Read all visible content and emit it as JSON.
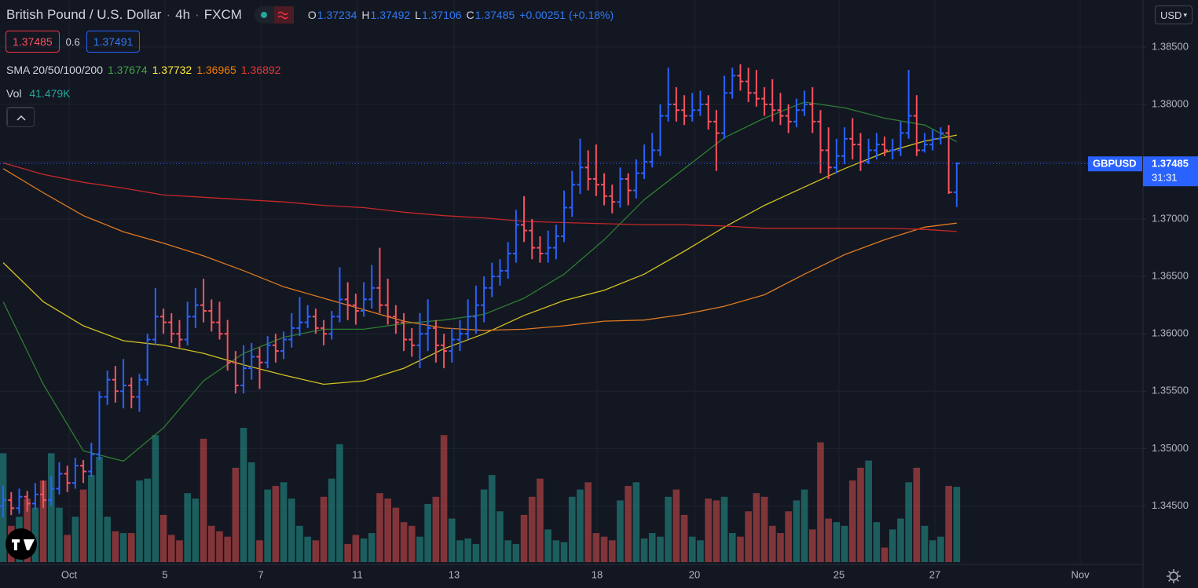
{
  "header": {
    "symbol": "British Pound / U.S. Dollar",
    "interval": "4h",
    "exchange": "FXCM",
    "ohlc_letters": [
      "O",
      "H",
      "L",
      "C"
    ],
    "change": "+0.00251 (+0.18%)",
    "sell": "1.37485",
    "spread": "0.6",
    "buy": "1.37491",
    "currency": "USD"
  },
  "chart_data": {
    "type": "ohlc",
    "open": [
      1.345,
      1.3455,
      1.3448,
      1.3458,
      1.3452,
      1.346,
      1.3455,
      1.3465,
      1.3478,
      1.347,
      1.3485,
      1.348,
      1.3495,
      1.3545,
      1.356,
      1.355,
      1.3555,
      1.3545,
      1.356,
      1.3595,
      1.3615,
      1.361,
      1.36,
      1.3595,
      1.3615,
      1.3625,
      1.362,
      1.361,
      1.36,
      1.3575,
      1.3555,
      1.357,
      1.358,
      1.3575,
      1.359,
      1.3585,
      1.3595,
      1.3605,
      1.361,
      1.3615,
      1.3605,
      1.36,
      1.3615,
      1.363,
      1.3625,
      1.362,
      1.363,
      1.364,
      1.3625,
      1.3615,
      1.361,
      1.3595,
      1.359,
      1.36,
      1.3605,
      1.359,
      1.3585,
      1.3595,
      1.36,
      1.3615,
      1.3625,
      1.364,
      1.365,
      1.3655,
      1.367,
      1.3695,
      1.369,
      1.3675,
      1.367,
      1.3675,
      1.3685,
      1.371,
      1.373,
      1.3745,
      1.3735,
      1.373,
      1.372,
      1.3715,
      1.3735,
      1.3725,
      1.374,
      1.375,
      1.376,
      1.379,
      1.38,
      1.3795,
      1.379,
      1.3795,
      1.38,
      1.3785,
      1.3775,
      1.381,
      1.3825,
      1.382,
      1.381,
      1.3805,
      1.38,
      1.3795,
      1.379,
      1.3785,
      1.3795,
      1.38,
      1.3785,
      1.376,
      1.3745,
      1.3755,
      1.377,
      1.3765,
      1.375,
      1.376,
      1.3765,
      1.376,
      1.376,
      1.3775,
      1.379,
      1.376,
      1.3765,
      1.377,
      1.3775,
      1.37234
    ],
    "high": [
      1.3468,
      1.3462,
      1.3465,
      1.3463,
      1.347,
      1.3472,
      1.3476,
      1.3488,
      1.3485,
      1.3492,
      1.349,
      1.3505,
      1.355,
      1.3568,
      1.3572,
      1.3578,
      1.3562,
      1.3565,
      1.36,
      1.364,
      1.3622,
      1.3618,
      1.3612,
      1.3628,
      1.364,
      1.3648,
      1.363,
      1.3628,
      1.3612,
      1.3585,
      1.359,
      1.3592,
      1.3588,
      1.3598,
      1.36,
      1.3602,
      1.3618,
      1.3632,
      1.3625,
      1.3622,
      1.3612,
      1.362,
      1.3658,
      1.3645,
      1.3635,
      1.3645,
      1.366,
      1.3675,
      1.3648,
      1.3625,
      1.3618,
      1.3605,
      1.3618,
      1.363,
      1.3612,
      1.36,
      1.3605,
      1.3612,
      1.363,
      1.3642,
      1.365,
      1.3662,
      1.3665,
      1.368,
      1.3708,
      1.372,
      1.37,
      1.3685,
      1.369,
      1.3695,
      1.3725,
      1.3742,
      1.377,
      1.376,
      1.3765,
      1.374,
      1.373,
      1.3745,
      1.374,
      1.3752,
      1.3765,
      1.3775,
      1.38,
      1.3832,
      1.3815,
      1.3808,
      1.381,
      1.3812,
      1.3808,
      1.3795,
      1.3825,
      1.3832,
      1.3835,
      1.3832,
      1.383,
      1.3815,
      1.3822,
      1.381,
      1.38,
      1.3805,
      1.3812,
      1.3815,
      1.3795,
      1.378,
      1.377,
      1.378,
      1.3788,
      1.3775,
      1.377,
      1.3775,
      1.3772,
      1.377,
      1.3785,
      1.383,
      1.3808,
      1.3775,
      1.3778,
      1.378,
      1.3782,
      1.37492
    ],
    "low": [
      1.344,
      1.3442,
      1.3443,
      1.3445,
      1.3447,
      1.3448,
      1.345,
      1.346,
      1.3462,
      1.3465,
      1.347,
      1.3475,
      1.349,
      1.3538,
      1.354,
      1.3535,
      1.3535,
      1.3532,
      1.3555,
      1.359,
      1.36,
      1.3592,
      1.3588,
      1.359,
      1.3605,
      1.361,
      1.3602,
      1.3595,
      1.3568,
      1.3548,
      1.3548,
      1.356,
      1.3552,
      1.357,
      1.3575,
      1.3578,
      1.3588,
      1.3598,
      1.3605,
      1.36,
      1.359,
      1.3595,
      1.361,
      1.3612,
      1.3608,
      1.3615,
      1.3622,
      1.3618,
      1.3608,
      1.36,
      1.3585,
      1.358,
      1.357,
      1.3585,
      1.3575,
      1.357,
      1.3575,
      1.3585,
      1.3595,
      1.36,
      1.361,
      1.3632,
      1.3642,
      1.3648,
      1.3662,
      1.368,
      1.3665,
      1.3662,
      1.3662,
      1.3665,
      1.368,
      1.3702,
      1.3722,
      1.3725,
      1.372,
      1.3712,
      1.3705,
      1.371,
      1.3712,
      1.3718,
      1.3735,
      1.3745,
      1.3755,
      1.3785,
      1.3785,
      1.3782,
      1.3785,
      1.379,
      1.3778,
      1.3742,
      1.377,
      1.3805,
      1.3812,
      1.3802,
      1.3798,
      1.379,
      1.3785,
      1.3782,
      1.3775,
      1.378,
      1.379,
      1.3775,
      1.374,
      1.3735,
      1.374,
      1.3748,
      1.3752,
      1.3742,
      1.3748,
      1.3752,
      1.3755,
      1.3752,
      1.3755,
      1.377,
      1.3755,
      1.3758,
      1.376,
      1.3765,
      1.3722,
      1.37106
    ],
    "close": [
      1.3455,
      1.3448,
      1.3458,
      1.3452,
      1.346,
      1.3455,
      1.3465,
      1.3478,
      1.347,
      1.3485,
      1.348,
      1.3495,
      1.3545,
      1.356,
      1.355,
      1.3555,
      1.3545,
      1.356,
      1.3595,
      1.3615,
      1.361,
      1.36,
      1.3595,
      1.3615,
      1.3625,
      1.362,
      1.361,
      1.36,
      1.3575,
      1.3555,
      1.357,
      1.358,
      1.3575,
      1.359,
      1.3585,
      1.3595,
      1.3605,
      1.361,
      1.3615,
      1.3605,
      1.36,
      1.3615,
      1.363,
      1.3625,
      1.362,
      1.363,
      1.364,
      1.3625,
      1.3615,
      1.361,
      1.3595,
      1.359,
      1.36,
      1.3605,
      1.359,
      1.3585,
      1.3595,
      1.36,
      1.3615,
      1.3625,
      1.364,
      1.365,
      1.3655,
      1.367,
      1.3695,
      1.369,
      1.3675,
      1.367,
      1.3675,
      1.3685,
      1.371,
      1.373,
      1.3745,
      1.3735,
      1.373,
      1.372,
      1.3715,
      1.3735,
      1.3725,
      1.374,
      1.375,
      1.376,
      1.379,
      1.38,
      1.3795,
      1.379,
      1.3795,
      1.38,
      1.3785,
      1.3775,
      1.381,
      1.3825,
      1.382,
      1.381,
      1.3805,
      1.38,
      1.3795,
      1.379,
      1.3785,
      1.3795,
      1.38,
      1.3785,
      1.376,
      1.3745,
      1.3755,
      1.377,
      1.3765,
      1.375,
      1.376,
      1.3765,
      1.376,
      1.376,
      1.3775,
      1.379,
      1.376,
      1.3765,
      1.377,
      1.3775,
      1.37234,
      1.37485
    ],
    "volume": [
      60,
      20,
      25,
      35,
      30,
      45,
      60,
      30,
      15,
      25,
      40,
      48,
      58,
      25,
      17,
      16,
      16,
      45,
      46,
      70,
      26,
      15,
      12,
      38,
      35,
      68,
      20,
      17,
      14,
      52,
      74,
      55,
      12,
      40,
      42,
      44,
      35,
      20,
      14,
      12,
      36,
      46,
      65,
      10,
      15,
      13,
      16,
      38,
      35,
      30,
      22,
      20,
      14,
      32,
      36,
      70,
      24,
      12,
      13,
      10,
      40,
      48,
      28,
      12,
      10,
      26,
      36,
      46,
      18,
      12,
      11,
      36,
      40,
      44,
      16,
      14,
      12,
      34,
      42,
      44,
      13,
      16,
      14,
      36,
      40,
      26,
      14,
      12,
      35,
      34,
      36,
      16,
      14,
      28,
      38,
      36,
      20,
      16,
      28,
      34,
      40,
      18,
      66,
      24,
      22,
      20,
      45,
      52,
      56,
      22,
      8,
      18,
      24,
      44,
      52,
      20,
      12,
      14,
      42,
      41.479
    ],
    "volume_legend": {
      "name": "Vol",
      "label": "41.479K"
    },
    "sma_name": "SMA 20/50/100/200",
    "sma_x": [
      0,
      5,
      10,
      15,
      20,
      25,
      30,
      35,
      40,
      45,
      50,
      55,
      60,
      65,
      70,
      75,
      80,
      85,
      90,
      95,
      100,
      105,
      110,
      115,
      119
    ],
    "sma": [
      {
        "color": "#2e7d32",
        "legend_color": "#43a047",
        "values": [
          1.3628,
          1.3556,
          1.3498,
          1.3489,
          1.3518,
          1.3559,
          1.3583,
          1.3597,
          1.3604,
          1.3604,
          1.3609,
          1.3612,
          1.3617,
          1.3631,
          1.3652,
          1.3682,
          1.3717,
          1.3744,
          1.3771,
          1.3788,
          1.3802,
          1.3797,
          1.3788,
          1.3782,
          1.37674
        ]
      },
      {
        "color": "#d4c21f",
        "legend_color": "#ffeb3b",
        "values": [
          1.3662,
          1.3628,
          1.3607,
          1.3594,
          1.359,
          1.3583,
          1.3573,
          1.3564,
          1.3556,
          1.3559,
          1.357,
          1.3587,
          1.36,
          1.3616,
          1.3629,
          1.3638,
          1.3652,
          1.3672,
          1.3693,
          1.3712,
          1.3728,
          1.3744,
          1.3758,
          1.3768,
          1.37732
        ]
      },
      {
        "color": "#e07a1f",
        "legend_color": "#f57c00",
        "values": [
          1.3744,
          1.3723,
          1.3703,
          1.3689,
          1.3679,
          1.3668,
          1.3655,
          1.3641,
          1.3631,
          1.3621,
          1.3611,
          1.3605,
          1.3603,
          1.3604,
          1.3607,
          1.3611,
          1.3612,
          1.3617,
          1.3624,
          1.3634,
          1.3652,
          1.3669,
          1.3682,
          1.3693,
          1.36965
        ]
      },
      {
        "color": "#c62828",
        "legend_color": "#e53935",
        "values": [
          1.3749,
          1.3739,
          1.3732,
          1.3727,
          1.3721,
          1.3719,
          1.3717,
          1.3715,
          1.3712,
          1.371,
          1.3706,
          1.3703,
          1.3701,
          1.3698,
          1.3697,
          1.3696,
          1.3695,
          1.3695,
          1.3694,
          1.3692,
          1.3692,
          1.3692,
          1.3692,
          1.3691,
          1.36892
        ]
      }
    ],
    "ylim": [
      1.3401,
      1.3891
    ],
    "yticks": [
      {
        "value": 1.345,
        "label": "1.34500"
      },
      {
        "value": 1.35,
        "label": "1.35000"
      },
      {
        "value": 1.355,
        "label": "1.35500"
      },
      {
        "value": 1.36,
        "label": "1.36000"
      },
      {
        "value": 1.365,
        "label": "1.36500"
      },
      {
        "value": 1.37,
        "label": "1.37000"
      },
      {
        "value": 1.375,
        "label": "1.37500"
      },
      {
        "value": 1.38,
        "label": "1.38000"
      },
      {
        "value": 1.385,
        "label": "1.38500"
      }
    ],
    "xlim": [
      -0.4,
      142.25
    ],
    "xticks": [
      {
        "value": 8.23,
        "label": "Oct"
      },
      {
        "value": 20.19,
        "label": "5"
      },
      {
        "value": 32.15,
        "label": "7"
      },
      {
        "value": 44.21,
        "label": "11"
      },
      {
        "value": 56.27,
        "label": "13"
      },
      {
        "value": 74.11,
        "label": "18"
      },
      {
        "value": 86.27,
        "label": "20"
      },
      {
        "value": 104.31,
        "label": "25"
      },
      {
        "value": 116.27,
        "label": "27"
      },
      {
        "value": 134.41,
        "label": "Nov"
      }
    ],
    "grid": true,
    "up_color": "#2962ff",
    "down_color": "#f7525f",
    "volume_up_color": "#26a69a",
    "volume_down_color": "#ef5350",
    "last_price_label": {
      "symbol": "GBPUSD",
      "countdown": "31:31"
    }
  }
}
